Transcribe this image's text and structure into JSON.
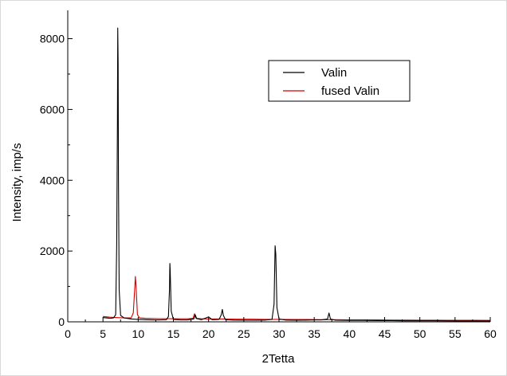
{
  "chart_data": {
    "type": "line",
    "xlabel": "2Tetta",
    "ylabel": "Intensity, imp/s",
    "xlim": [
      0,
      60
    ],
    "ylim": [
      0,
      8800
    ],
    "x_ticks": [
      0,
      5,
      10,
      15,
      20,
      25,
      30,
      35,
      40,
      45,
      50,
      55,
      60
    ],
    "y_ticks": [
      0,
      2000,
      4000,
      6000,
      8000
    ],
    "legend_position": "top-right",
    "series": [
      {
        "name": "Valin",
        "color": "#000000",
        "points": [
          [
            5.0,
            120
          ],
          [
            5.5,
            110
          ],
          [
            6.0,
            100
          ],
          [
            6.5,
            110
          ],
          [
            6.8,
            200
          ],
          [
            6.95,
            2200
          ],
          [
            7.05,
            5600
          ],
          [
            7.1,
            8300
          ],
          [
            7.15,
            7300
          ],
          [
            7.2,
            4000
          ],
          [
            7.3,
            900
          ],
          [
            7.5,
            180
          ],
          [
            8.0,
            110
          ],
          [
            9.0,
            80
          ],
          [
            10.0,
            70
          ],
          [
            11.0,
            60
          ],
          [
            12.0,
            55
          ],
          [
            13.0,
            55
          ],
          [
            14.0,
            60
          ],
          [
            14.3,
            150
          ],
          [
            14.45,
            900
          ],
          [
            14.5,
            1650
          ],
          [
            14.55,
            1450
          ],
          [
            14.7,
            300
          ],
          [
            15.0,
            70
          ],
          [
            16.0,
            55
          ],
          [
            17.0,
            55
          ],
          [
            17.9,
            80
          ],
          [
            18.1,
            200
          ],
          [
            18.3,
            90
          ],
          [
            19.0,
            60
          ],
          [
            20.0,
            140
          ],
          [
            20.5,
            60
          ],
          [
            21.5,
            70
          ],
          [
            21.8,
            200
          ],
          [
            21.95,
            350
          ],
          [
            22.1,
            180
          ],
          [
            22.4,
            60
          ],
          [
            23.5,
            50
          ],
          [
            25.0,
            45
          ],
          [
            26.5,
            45
          ],
          [
            28.0,
            50
          ],
          [
            29.0,
            70
          ],
          [
            29.3,
            500
          ],
          [
            29.45,
            2150
          ],
          [
            29.55,
            1900
          ],
          [
            29.7,
            400
          ],
          [
            30.0,
            80
          ],
          [
            31.0,
            50
          ],
          [
            32.0,
            45
          ],
          [
            33.0,
            45
          ],
          [
            34.0,
            50
          ],
          [
            35.0,
            55
          ],
          [
            36.0,
            55
          ],
          [
            36.9,
            80
          ],
          [
            37.1,
            250
          ],
          [
            37.3,
            80
          ],
          [
            38.0,
            45
          ],
          [
            40.0,
            40
          ],
          [
            42.0,
            40
          ],
          [
            44.0,
            35
          ],
          [
            46.0,
            35
          ],
          [
            48.0,
            30
          ],
          [
            50.0,
            30
          ],
          [
            52.0,
            30
          ],
          [
            54.0,
            28
          ],
          [
            56.0,
            25
          ],
          [
            58.0,
            25
          ],
          [
            60.0,
            25
          ]
        ]
      },
      {
        "name": "fused Valin",
        "color": "#d40000",
        "points": [
          [
            5.0,
            150
          ],
          [
            6.0,
            130
          ],
          [
            7.0,
            120
          ],
          [
            8.0,
            110
          ],
          [
            9.0,
            110
          ],
          [
            9.3,
            250
          ],
          [
            9.5,
            900
          ],
          [
            9.6,
            1280
          ],
          [
            9.7,
            1000
          ],
          [
            9.9,
            200
          ],
          [
            10.2,
            110
          ],
          [
            11.0,
            100
          ],
          [
            12.0,
            95
          ],
          [
            13.0,
            90
          ],
          [
            14.0,
            90
          ],
          [
            15.0,
            85
          ],
          [
            16.0,
            85
          ],
          [
            17.0,
            85
          ],
          [
            17.8,
            100
          ],
          [
            18.0,
            230
          ],
          [
            18.2,
            100
          ],
          [
            19.0,
            85
          ],
          [
            20.0,
            80
          ],
          [
            22.0,
            80
          ],
          [
            24.0,
            75
          ],
          [
            26.0,
            75
          ],
          [
            28.0,
            70
          ],
          [
            30.0,
            70
          ],
          [
            32.0,
            65
          ],
          [
            34.0,
            65
          ],
          [
            36.0,
            60
          ],
          [
            38.0,
            60
          ],
          [
            40.0,
            55
          ],
          [
            42.0,
            55
          ],
          [
            44.0,
            55
          ],
          [
            46.0,
            50
          ],
          [
            48.0,
            50
          ],
          [
            50.0,
            48
          ],
          [
            52.0,
            48
          ],
          [
            54.0,
            45
          ],
          [
            56.0,
            45
          ],
          [
            58.0,
            42
          ],
          [
            60.0,
            40
          ]
        ]
      }
    ]
  }
}
